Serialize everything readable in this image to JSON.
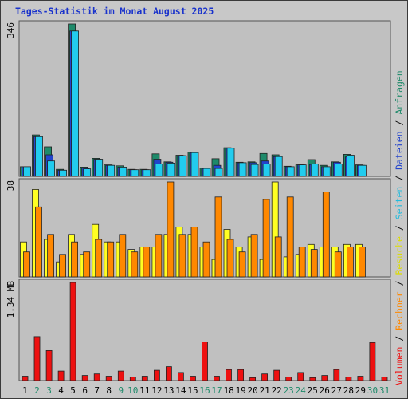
{
  "title": "Tages-Statistik im Monat August 2025",
  "chart_data": [
    {
      "type": "bar",
      "panel": "top",
      "categories": [
        "1",
        "2",
        "3",
        "4",
        "5",
        "6",
        "7",
        "8",
        "9",
        "10",
        "11",
        "12",
        "13",
        "14",
        "15",
        "16",
        "17",
        "18",
        "19",
        "20",
        "21",
        "22",
        "23",
        "24",
        "25",
        "26",
        "27",
        "28",
        "29",
        "30",
        "31"
      ],
      "ymax_label": "346",
      "ylim": [
        0,
        346
      ],
      "series": [
        {
          "name": "Anfragen",
          "color": "#1e8a6a",
          "values": [
            22,
            94,
            67,
            16,
            346,
            21,
            41,
            26,
            24,
            16,
            16,
            51,
            33,
            48,
            55,
            19,
            40,
            65,
            32,
            33,
            52,
            49,
            23,
            26,
            38,
            25,
            33,
            50,
            26,
            0,
            0
          ]
        },
        {
          "name": "Dateien",
          "color": "#2244cc",
          "values": [
            22,
            90,
            49,
            14,
            330,
            19,
            39,
            25,
            21,
            15,
            15,
            39,
            32,
            47,
            54,
            18,
            25,
            64,
            31,
            31,
            35,
            45,
            22,
            26,
            27,
            22,
            32,
            44,
            25,
            0,
            0
          ]
        },
        {
          "name": "Seiten",
          "color": "#22ccee",
          "values": [
            22,
            90,
            35,
            14,
            330,
            17,
            39,
            25,
            21,
            15,
            15,
            28,
            30,
            47,
            54,
            18,
            18,
            64,
            31,
            27,
            28,
            45,
            22,
            26,
            28,
            22,
            28,
            48,
            25,
            0,
            0
          ]
        }
      ]
    },
    {
      "type": "bar",
      "panel": "middle",
      "categories": [
        "1",
        "2",
        "3",
        "4",
        "5",
        "6",
        "7",
        "8",
        "9",
        "10",
        "11",
        "12",
        "13",
        "14",
        "15",
        "16",
        "17",
        "18",
        "19",
        "20",
        "21",
        "22",
        "23",
        "24",
        "25",
        "26",
        "27",
        "28",
        "29",
        "30",
        "31"
      ],
      "ymax_label": "38",
      "ylim": [
        0,
        38
      ],
      "series": [
        {
          "name": "Besuche",
          "color": "#ffff22",
          "values": [
            14,
            35,
            15,
            6,
            17,
            9,
            21,
            14,
            14,
            11,
            12,
            12,
            17,
            20,
            17,
            12,
            7,
            19,
            12,
            16,
            7,
            38,
            8,
            9,
            13,
            12,
            12,
            13,
            13,
            0,
            0
          ]
        },
        {
          "name": "Rechner",
          "color": "#ff8800",
          "values": [
            10,
            28,
            17,
            9,
            14,
            10,
            15,
            14,
            17,
            10,
            12,
            17,
            38,
            17,
            20,
            14,
            32,
            15,
            10,
            17,
            31,
            16,
            32,
            12,
            11,
            34,
            10,
            12,
            12,
            0,
            0
          ]
        }
      ]
    },
    {
      "type": "bar",
      "panel": "bottom",
      "categories": [
        "1",
        "2",
        "3",
        "4",
        "5",
        "6",
        "7",
        "8",
        "9",
        "10",
        "11",
        "12",
        "13",
        "14",
        "15",
        "16",
        "17",
        "18",
        "19",
        "20",
        "21",
        "22",
        "23",
        "24",
        "25",
        "26",
        "27",
        "28",
        "29",
        "30",
        "31"
      ],
      "ymax_label": "1.34 MB",
      "ylim": [
        0,
        1.34
      ],
      "series": [
        {
          "name": "Volumen",
          "color": "#ee1111",
          "values": [
            0.06,
            0.6,
            0.41,
            0.13,
            1.34,
            0.07,
            0.09,
            0.06,
            0.13,
            0.05,
            0.06,
            0.14,
            0.19,
            0.11,
            0.06,
            0.53,
            0.06,
            0.15,
            0.15,
            0.04,
            0.09,
            0.14,
            0.05,
            0.11,
            0.04,
            0.07,
            0.15,
            0.05,
            0.06,
            0.52,
            0.05
          ]
        }
      ]
    }
  ],
  "legend": [
    {
      "label": "Volumen",
      "color": "#ee1111"
    },
    {
      "label": "Rechner",
      "color": "#ff8800"
    },
    {
      "label": "Besuche",
      "color": "#dddd00"
    },
    {
      "label": "Seiten",
      "color": "#22bbdd"
    },
    {
      "label": "Dateien",
      "color": "#2244cc"
    },
    {
      "label": "Anfragen",
      "color": "#1e8a6a"
    }
  ],
  "separator": "/",
  "x_label_colors": {
    "weekday": "#000000",
    "weekend": "#1e8a6a"
  },
  "weekend_days": [
    "2",
    "3",
    "9",
    "10",
    "16",
    "17",
    "23",
    "24",
    "30",
    "31"
  ]
}
